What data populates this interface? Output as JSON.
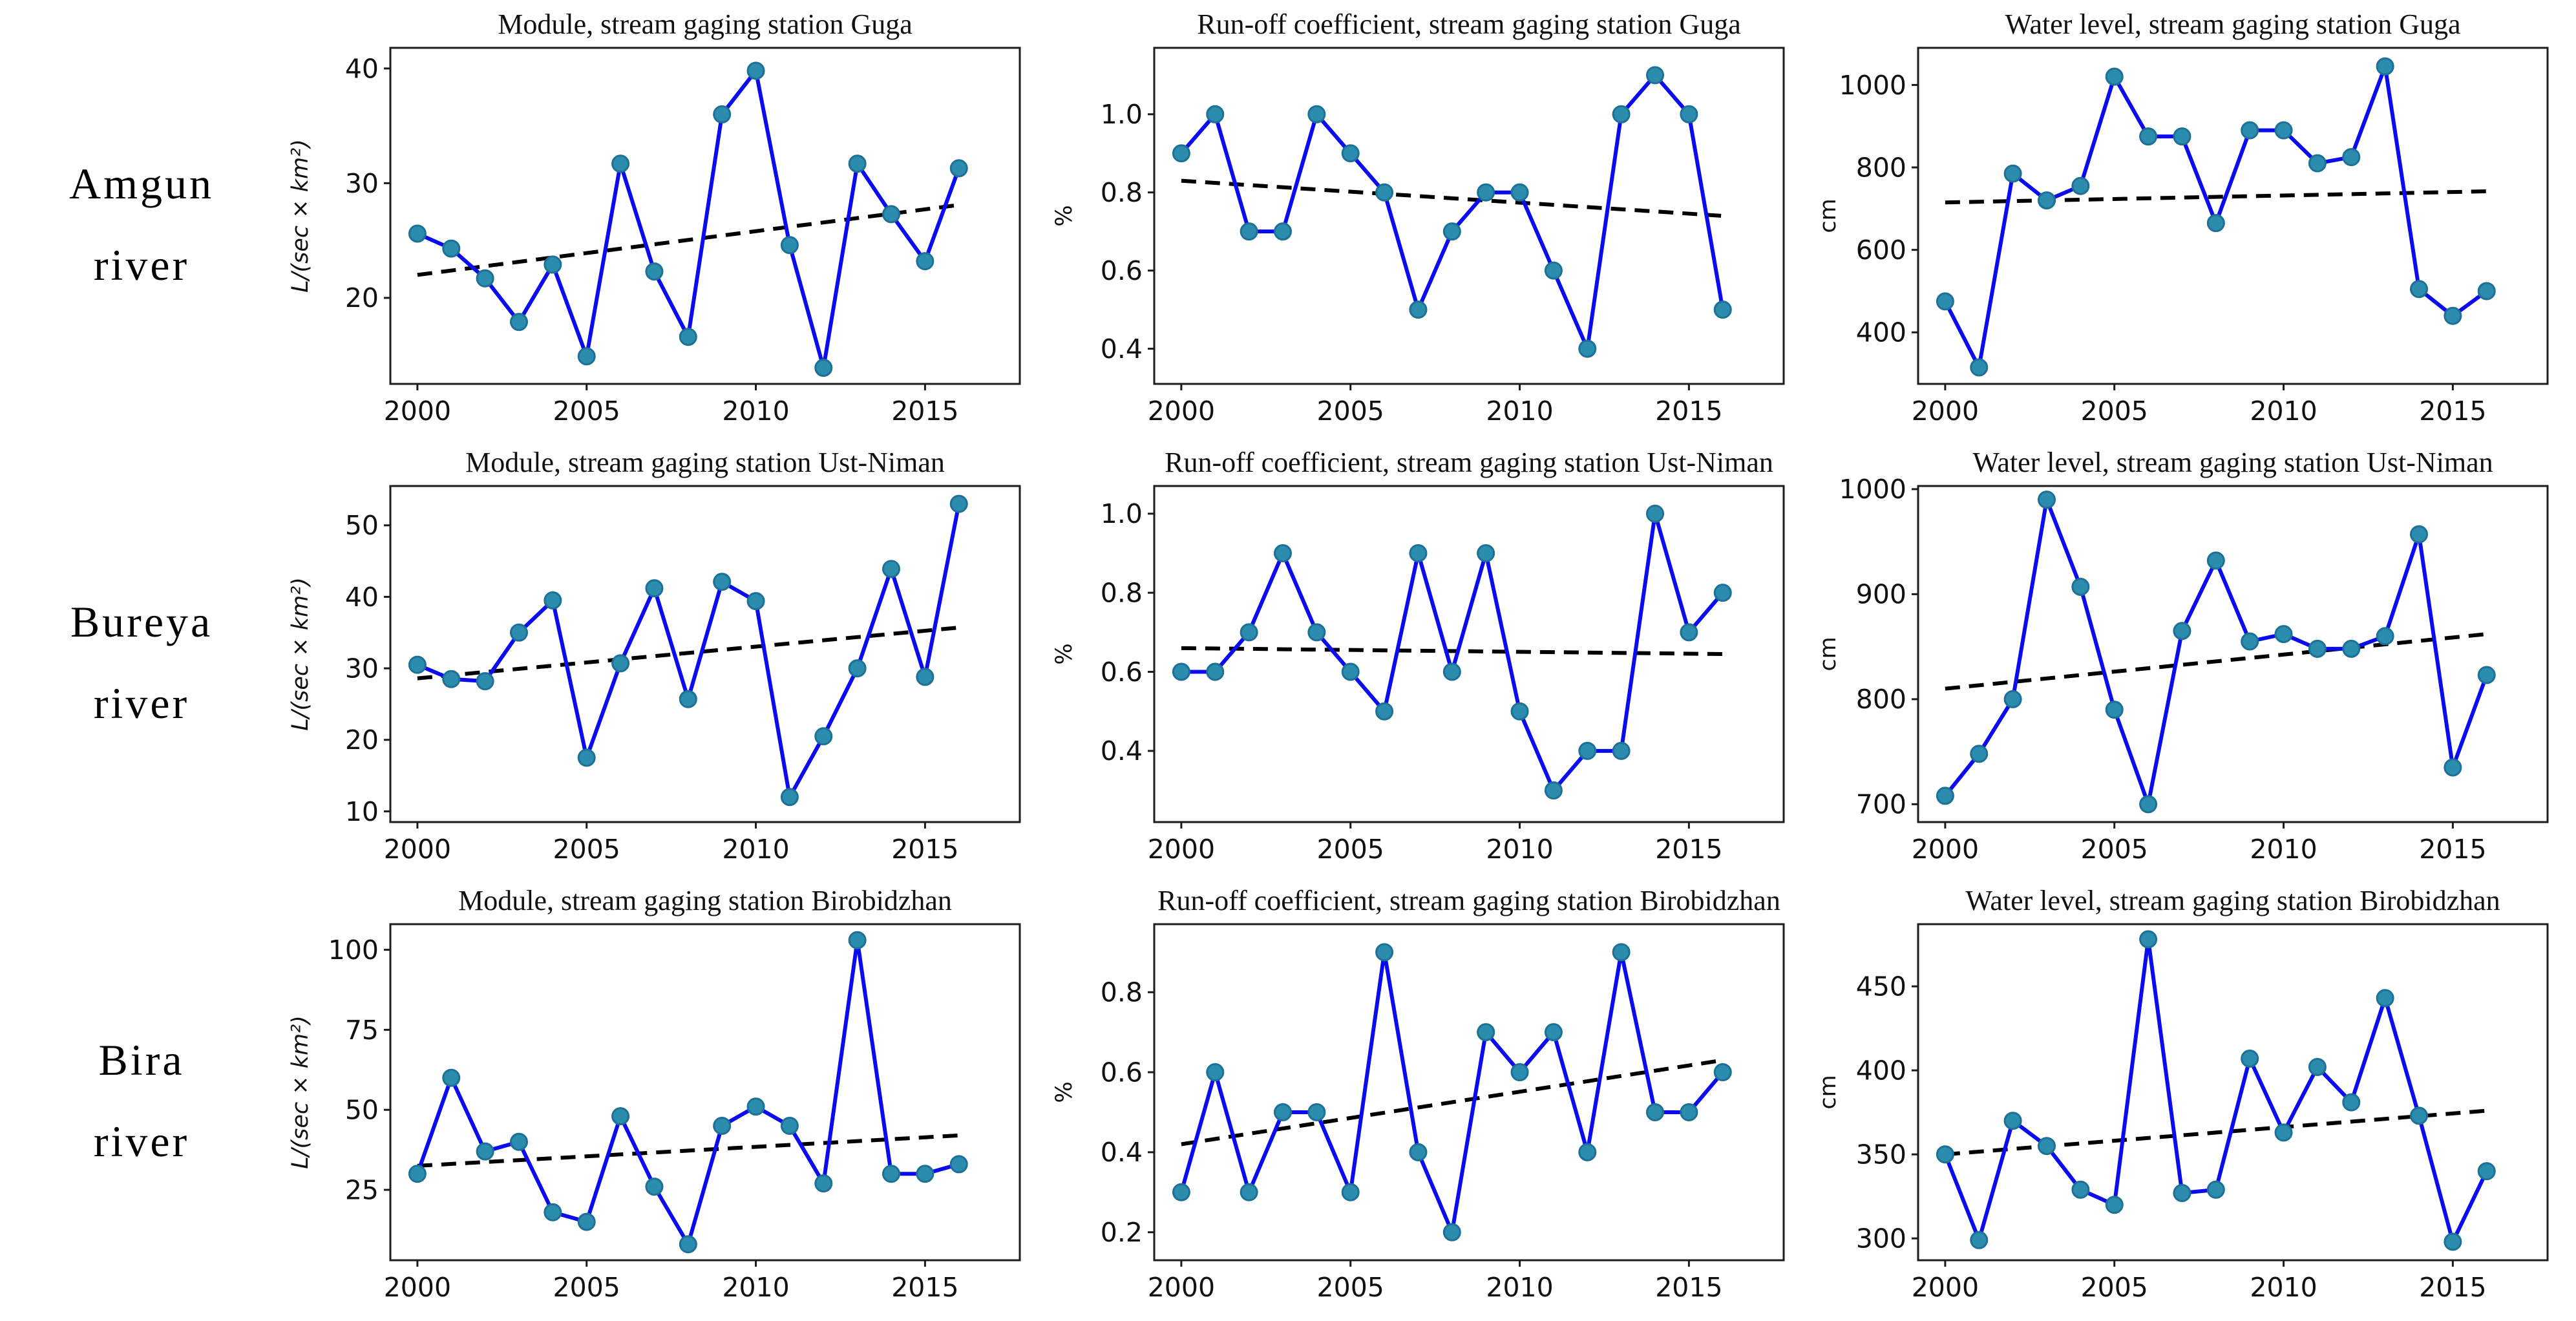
{
  "rows": [
    {
      "river_line1": "Amgun",
      "river_line2": "river"
    },
    {
      "river_line1": "Bureya",
      "river_line2": "river"
    },
    {
      "river_line1": "Bira",
      "river_line2": "river"
    }
  ],
  "colors": {
    "line": "#0b0bf0",
    "marker_fill": "#2b8cae",
    "marker_edge": "#1d7096",
    "trend": "#000000",
    "axis": "#1c1c1c",
    "text": "#111111"
  },
  "chart_data": [
    {
      "type": "line",
      "title": "Module, stream gaging station Guga",
      "ylabel": "L/(sec × km²)",
      "ylabel_italic": true,
      "ytick_decimals": 0,
      "x": [
        2000,
        2001,
        2002,
        2003,
        2004,
        2005,
        2006,
        2007,
        2008,
        2009,
        2010,
        2011,
        2012,
        2013,
        2014,
        2015,
        2016
      ],
      "values": [
        25.6,
        24.3,
        21.7,
        17.9,
        22.9,
        14.9,
        31.7,
        22.3,
        16.6,
        36.0,
        39.8,
        24.6,
        13.9,
        31.7,
        27.3,
        23.2,
        31.3
      ],
      "trend": [
        22.0,
        28.1
      ],
      "yticks": [
        20,
        30,
        40
      ],
      "ylim": [
        12.5,
        41.8
      ],
      "xticks": [
        2000,
        2005,
        2010,
        2015
      ],
      "xlim": [
        1999.2,
        2017.8
      ],
      "grid": false,
      "legend": "none"
    },
    {
      "type": "line",
      "title": "Run-off coefficient, stream gaging station Guga",
      "ylabel": "%",
      "ylabel_italic": false,
      "ytick_decimals": 1,
      "x": [
        2000,
        2001,
        2002,
        2003,
        2004,
        2005,
        2006,
        2007,
        2008,
        2009,
        2010,
        2011,
        2012,
        2013,
        2014,
        2015,
        2016
      ],
      "values": [
        0.9,
        1.0,
        0.7,
        0.7,
        1.0,
        0.9,
        0.8,
        0.5,
        0.7,
        0.8,
        0.8,
        0.6,
        0.4,
        1.0,
        1.1,
        1.0,
        0.5
      ],
      "trend": [
        0.83,
        0.74
      ],
      "yticks": [
        0.4,
        0.6,
        0.8,
        1.0
      ],
      "ylim": [
        0.31,
        1.17
      ],
      "xticks": [
        2000,
        2005,
        2010,
        2015
      ],
      "xlim": [
        1999.2,
        2017.8
      ],
      "grid": false,
      "legend": "none"
    },
    {
      "type": "line",
      "title": "Water level, stream gaging station Guga",
      "ylabel": "cm",
      "ylabel_italic": false,
      "ytick_decimals": 0,
      "x": [
        2000,
        2001,
        2002,
        2003,
        2004,
        2005,
        2006,
        2007,
        2008,
        2009,
        2010,
        2011,
        2012,
        2013,
        2014,
        2015,
        2016
      ],
      "values": [
        475,
        315,
        785,
        720,
        755,
        1020,
        875,
        875,
        665,
        890,
        890,
        810,
        825,
        1045,
        505,
        440,
        500
      ],
      "trend": [
        715,
        742
      ],
      "yticks": [
        400,
        600,
        800,
        1000
      ],
      "ylim": [
        275,
        1090
      ],
      "xticks": [
        2000,
        2005,
        2010,
        2015
      ],
      "xlim": [
        1999.2,
        2017.8
      ],
      "grid": false,
      "legend": "none"
    },
    {
      "type": "line",
      "title": "Module, stream gaging station Ust-Niman",
      "ylabel": "L/(sec × km²)",
      "ylabel_italic": true,
      "ytick_decimals": 0,
      "x": [
        2000,
        2001,
        2002,
        2003,
        2004,
        2005,
        2006,
        2007,
        2008,
        2009,
        2010,
        2011,
        2012,
        2013,
        2014,
        2015,
        2016
      ],
      "values": [
        30.5,
        28.5,
        28.2,
        35.0,
        39.5,
        17.5,
        30.7,
        41.2,
        25.7,
        42.1,
        39.4,
        12.0,
        20.5,
        30.0,
        43.9,
        28.8,
        53.0
      ],
      "trend": [
        28.6,
        35.7
      ],
      "yticks": [
        10,
        20,
        30,
        40,
        50
      ],
      "ylim": [
        8.5,
        55.5
      ],
      "xticks": [
        2000,
        2005,
        2010,
        2015
      ],
      "xlim": [
        1999.2,
        2017.8
      ],
      "grid": false,
      "legend": "none"
    },
    {
      "type": "line",
      "title": "Run-off coefficient, stream gaging station Ust-Niman",
      "ylabel": "%",
      "ylabel_italic": false,
      "ytick_decimals": 1,
      "x": [
        2000,
        2001,
        2002,
        2003,
        2004,
        2005,
        2006,
        2007,
        2008,
        2009,
        2010,
        2011,
        2012,
        2013,
        2014,
        2015,
        2016
      ],
      "values": [
        0.6,
        0.6,
        0.7,
        0.9,
        0.7,
        0.6,
        0.5,
        0.9,
        0.6,
        0.9,
        0.5,
        0.3,
        0.4,
        0.4,
        1.0,
        0.7,
        0.8
      ],
      "trend": [
        0.66,
        0.645
      ],
      "yticks": [
        0.4,
        0.6,
        0.8,
        1.0
      ],
      "ylim": [
        0.22,
        1.07
      ],
      "xticks": [
        2000,
        2005,
        2010,
        2015
      ],
      "xlim": [
        1999.2,
        2017.8
      ],
      "grid": false,
      "legend": "none"
    },
    {
      "type": "line",
      "title": "Water level, stream gaging station Ust-Niman",
      "ylabel": "cm",
      "ylabel_italic": false,
      "ytick_decimals": 0,
      "x": [
        2000,
        2001,
        2002,
        2003,
        2004,
        2005,
        2006,
        2007,
        2008,
        2009,
        2010,
        2011,
        2012,
        2013,
        2014,
        2015,
        2016
      ],
      "values": [
        708,
        748,
        800,
        990,
        907,
        790,
        700,
        865,
        932,
        855,
        862,
        848,
        848,
        860,
        957,
        735,
        823
      ],
      "trend": [
        810,
        862
      ],
      "yticks": [
        700,
        800,
        900,
        1000
      ],
      "ylim": [
        683,
        1003
      ],
      "xticks": [
        2000,
        2005,
        2010,
        2015
      ],
      "xlim": [
        1999.2,
        2017.8
      ],
      "grid": false,
      "legend": "none"
    },
    {
      "type": "line",
      "title": "Module, stream gaging station Birobidzhan",
      "ylabel": "L/(sec × km²)",
      "ylabel_italic": true,
      "ytick_decimals": 0,
      "x": [
        2000,
        2001,
        2002,
        2003,
        2004,
        2005,
        2006,
        2007,
        2008,
        2009,
        2010,
        2011,
        2012,
        2013,
        2014,
        2015,
        2016
      ],
      "values": [
        30,
        60,
        37,
        40,
        18,
        15,
        48,
        26,
        8,
        45,
        51,
        45,
        27,
        103,
        30,
        30,
        33
      ],
      "trend": [
        32.5,
        42.0
      ],
      "yticks": [
        25,
        50,
        75,
        100
      ],
      "ylim": [
        3,
        108
      ],
      "xticks": [
        2000,
        2005,
        2010,
        2015
      ],
      "xlim": [
        1999.2,
        2017.8
      ],
      "grid": false,
      "legend": "none"
    },
    {
      "type": "line",
      "title": "Run-off coefficient, stream gaging station Birobidzhan",
      "ylabel": "%",
      "ylabel_italic": false,
      "ytick_decimals": 1,
      "x": [
        2000,
        2001,
        2002,
        2003,
        2004,
        2005,
        2006,
        2007,
        2008,
        2009,
        2010,
        2011,
        2012,
        2013,
        2014,
        2015,
        2016
      ],
      "values": [
        0.3,
        0.6,
        0.3,
        0.5,
        0.5,
        0.3,
        0.9,
        0.4,
        0.2,
        0.7,
        0.6,
        0.7,
        0.4,
        0.9,
        0.5,
        0.5,
        0.6
      ],
      "trend": [
        0.42,
        0.63
      ],
      "yticks": [
        0.2,
        0.4,
        0.6,
        0.8
      ],
      "ylim": [
        0.13,
        0.97
      ],
      "xticks": [
        2000,
        2005,
        2010,
        2015
      ],
      "xlim": [
        1999.2,
        2017.8
      ],
      "grid": false,
      "legend": "none"
    },
    {
      "type": "line",
      "title": "Water level, stream gaging station Birobidzhan",
      "ylabel": "cm",
      "ylabel_italic": false,
      "ytick_decimals": 0,
      "x": [
        2000,
        2001,
        2002,
        2003,
        2004,
        2005,
        2006,
        2007,
        2008,
        2009,
        2010,
        2011,
        2012,
        2013,
        2014,
        2015,
        2016
      ],
      "values": [
        350,
        299,
        370,
        355,
        329,
        320,
        478,
        327,
        329,
        407,
        363,
        402,
        381,
        443,
        373,
        298,
        340
      ],
      "trend": [
        350,
        376
      ],
      "yticks": [
        300,
        350,
        400,
        450
      ],
      "ylim": [
        287,
        487
      ],
      "xticks": [
        2000,
        2005,
        2010,
        2015
      ],
      "xlim": [
        1999.2,
        2017.8
      ],
      "grid": false,
      "legend": "none"
    }
  ]
}
